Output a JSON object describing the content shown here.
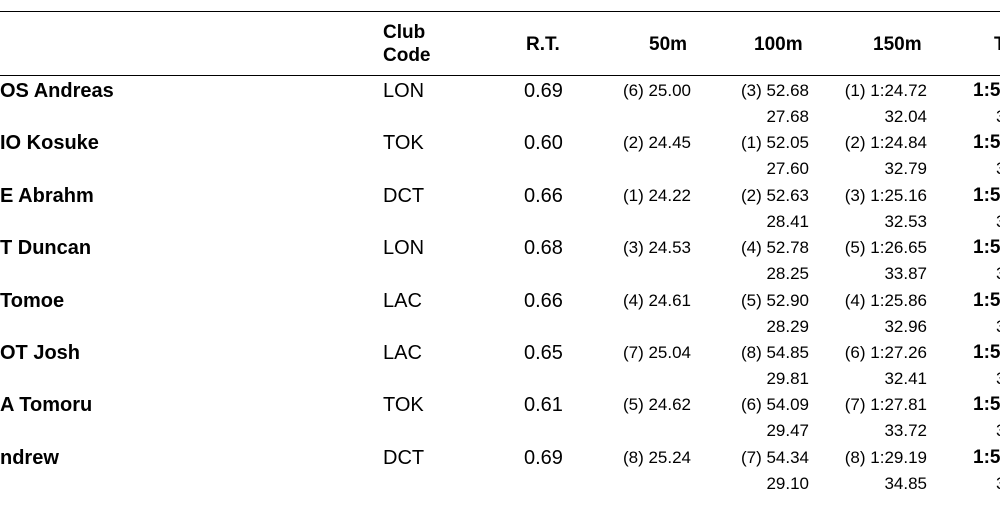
{
  "header": {
    "club_line1": "Club",
    "club_line2": "Code",
    "rt": "R.T.",
    "m50": "50m",
    "m100": "100m",
    "m150": "150m",
    "last": "T"
  },
  "rows": [
    {
      "name": "OS Andreas",
      "code": "LON",
      "rt": "0.69",
      "s50": "(6) 25.00",
      "s100": "(3) 52.68",
      "s100b": "27.68",
      "s150": "(1) 1:24.72",
      "s150b": "32.04",
      "final": "1:5",
      "finalb": "3"
    },
    {
      "name": "IO Kosuke",
      "code": "TOK",
      "rt": "0.60",
      "s50": "(2) 24.45",
      "s100": "(1) 52.05",
      "s100b": "27.60",
      "s150": "(2) 1:24.84",
      "s150b": "32.79",
      "final": "1:5",
      "finalb": "3"
    },
    {
      "name": "E Abrahm",
      "code": "DCT",
      "rt": "0.66",
      "s50": "(1) 24.22",
      "s100": "(2) 52.63",
      "s100b": "28.41",
      "s150": "(3) 1:25.16",
      "s150b": "32.53",
      "final": "1:5",
      "finalb": "3"
    },
    {
      "name": "T Duncan",
      "code": "LON",
      "rt": "0.68",
      "s50": "(3) 24.53",
      "s100": "(4) 52.78",
      "s100b": "28.25",
      "s150": "(5) 1:26.65",
      "s150b": "33.87",
      "final": "1:5",
      "finalb": "3"
    },
    {
      "name": "Tomoe",
      "code": "LAC",
      "rt": "0.66",
      "s50": "(4) 24.61",
      "s100": "(5) 52.90",
      "s100b": "28.29",
      "s150": "(4) 1:25.86",
      "s150b": "32.96",
      "final": "1:5",
      "finalb": "3"
    },
    {
      "name": "OT Josh",
      "code": "LAC",
      "rt": "0.65",
      "s50": "(7) 25.04",
      "s100": "(8) 54.85",
      "s100b": "29.81",
      "s150": "(6) 1:27.26",
      "s150b": "32.41",
      "final": "1:5",
      "finalb": "3"
    },
    {
      "name": "A Tomoru",
      "code": "TOK",
      "rt": "0.61",
      "s50": "(5) 24.62",
      "s100": "(6) 54.09",
      "s100b": "29.47",
      "s150": "(7) 1:27.81",
      "s150b": "33.72",
      "final": "1:5",
      "finalb": "3"
    },
    {
      "name": "ndrew",
      "code": "DCT",
      "rt": "0.69",
      "s50": "(8) 25.24",
      "s100": "(7) 54.34",
      "s100b": "29.10",
      "s150": "(8) 1:29.19",
      "s150b": "34.85",
      "final": "1:5",
      "finalb": "3"
    }
  ]
}
